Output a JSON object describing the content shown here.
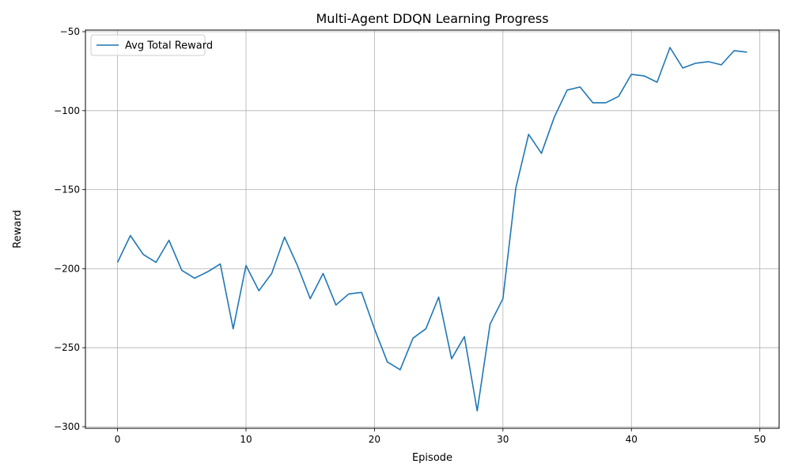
{
  "chart_data": {
    "type": "line",
    "title": "Multi-Agent DDQN Learning Progress",
    "xlabel": "Episode",
    "ylabel": "Reward",
    "xlim": [
      -2.5,
      51.5
    ],
    "ylim": [
      -301,
      -49
    ],
    "xticks": [
      0,
      10,
      20,
      30,
      40,
      50
    ],
    "yticks": [
      -300,
      -250,
      -200,
      -150,
      -100,
      -50
    ],
    "xtick_labels": [
      "0",
      "10",
      "20",
      "30",
      "40",
      "50"
    ],
    "ytick_labels": [
      "−300",
      "−250",
      "−200",
      "−150",
      "−100",
      "−50"
    ],
    "grid": true,
    "legend_position": "top-left",
    "series": [
      {
        "name": "Avg Total Reward",
        "color": "#1f77b4",
        "x": [
          0,
          1,
          2,
          3,
          4,
          5,
          6,
          7,
          8,
          9,
          10,
          11,
          12,
          13,
          14,
          15,
          16,
          17,
          18,
          19,
          20,
          21,
          22,
          23,
          24,
          25,
          26,
          27,
          28,
          29,
          30,
          31,
          32,
          33,
          34,
          35,
          36,
          37,
          38,
          39,
          40,
          41,
          42,
          43,
          44,
          45,
          46,
          47,
          48,
          49
        ],
        "y": [
          -196,
          -179,
          -191,
          -196,
          -182,
          -201,
          -206,
          -202,
          -197,
          -238,
          -198,
          -214,
          -203,
          -180,
          -198,
          -219,
          -203,
          -223,
          -216,
          -215,
          -238,
          -259,
          -264,
          -244,
          -238,
          -218,
          -257,
          -243,
          -290,
          -235,
          -219,
          -149,
          -115,
          -127,
          -104,
          -87,
          -85,
          -95,
          -95,
          -91,
          -77,
          -78,
          -82,
          -60,
          -73,
          -70,
          -69,
          -71,
          -62,
          -63
        ]
      }
    ]
  }
}
